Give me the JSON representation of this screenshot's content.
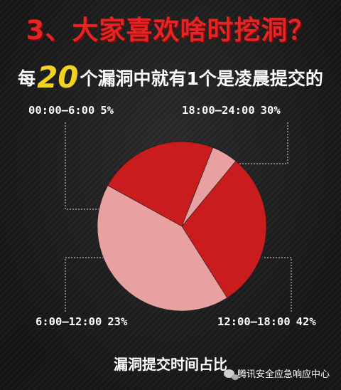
{
  "title": "3、大家喜欢啥时挖洞？",
  "subtitle": {
    "prefix": "每",
    "number": "20",
    "suffix": "个漏洞中就有1个是凌晨提交的"
  },
  "footer": "漏洞提交时间占比",
  "brand": "腾讯安全应急响应中心",
  "chart_data": {
    "type": "pie",
    "slices": [
      {
        "label": "00:00—6:00",
        "value": 5,
        "value_text": "5%",
        "color": "#e8a1a1"
      },
      {
        "label": "6:00—12:00",
        "value": 23,
        "value_text": "23%",
        "color": "#c91c1c"
      },
      {
        "label": "12:00—18:00",
        "value": 42,
        "value_text": "42%",
        "color": "#e8a1a1"
      },
      {
        "label": "18:00—24:00",
        "value": 30,
        "value_text": "30%",
        "color": "#c91c1c"
      }
    ]
  }
}
